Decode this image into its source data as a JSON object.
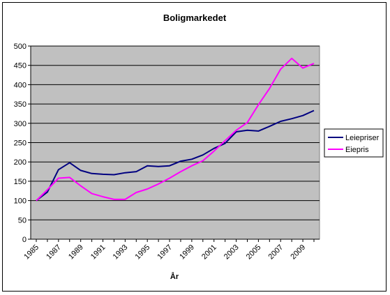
{
  "chart_data": {
    "type": "line",
    "title": "Boligmarkedet",
    "xlabel": "År",
    "ylabel": "",
    "ylim": [
      0,
      500
    ],
    "y_ticks": [
      0,
      50,
      100,
      150,
      200,
      250,
      300,
      350,
      400,
      450,
      500
    ],
    "x_tick_labels": [
      "1985",
      "1987",
      "1989",
      "1991",
      "1993",
      "1995",
      "1997",
      "1999",
      "2001",
      "2003",
      "2005",
      "2007",
      "2009"
    ],
    "grid": "horizontal",
    "legend_position": "right",
    "x": [
      1985,
      1986,
      1987,
      1988,
      1989,
      1990,
      1991,
      1992,
      1993,
      1994,
      1995,
      1996,
      1997,
      1998,
      1999,
      2000,
      2001,
      2002,
      2003,
      2004,
      2005,
      2006,
      2007,
      2008,
      2009,
      2010
    ],
    "series": [
      {
        "name": "Leiepriser",
        "color": "#000080",
        "values": [
          100,
          122,
          180,
          198,
          178,
          170,
          168,
          167,
          172,
          175,
          190,
          188,
          190,
          202,
          207,
          218,
          235,
          248,
          278,
          282,
          280,
          292,
          305,
          312,
          320,
          333
        ]
      },
      {
        "name": "Eiepris",
        "color": "#ff00ff",
        "values": [
          100,
          128,
          158,
          160,
          138,
          118,
          110,
          103,
          103,
          121,
          130,
          143,
          158,
          175,
          190,
          203,
          228,
          255,
          282,
          302,
          348,
          390,
          440,
          468,
          443,
          455
        ]
      }
    ]
  },
  "colors": {
    "plot_background": "#c0c0c0",
    "grid": "#000000"
  }
}
